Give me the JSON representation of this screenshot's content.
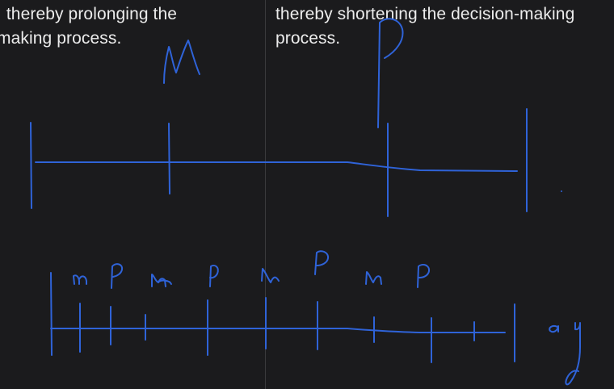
{
  "text": {
    "left_line1": ", thereby prolonging the",
    "left_line2": "making process.",
    "right_line1": "thereby shortening the decision-making",
    "right_line2": "process."
  },
  "ink": {
    "stroke_color": "#2f63d8",
    "text_color": "#ececec",
    "background": "#1b1b1d"
  }
}
